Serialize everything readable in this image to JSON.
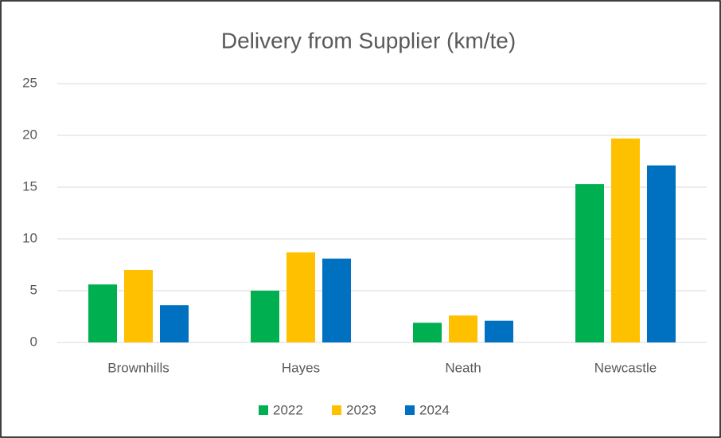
{
  "chart_data": {
    "type": "bar",
    "title": "Delivery from Supplier (km/te)",
    "categories": [
      "Brownhills",
      "Hayes",
      "Neath",
      "Newcastle"
    ],
    "series": [
      {
        "name": "2022",
        "color": "#00b050",
        "values": [
          5.6,
          5.0,
          1.9,
          15.3
        ]
      },
      {
        "name": "2023",
        "color": "#ffc000",
        "values": [
          7.0,
          8.7,
          2.6,
          19.7
        ]
      },
      {
        "name": "2024",
        "color": "#0070c0",
        "values": [
          3.6,
          8.1,
          2.1,
          17.1
        ]
      }
    ],
    "ylim": [
      0,
      25
    ],
    "yticks": [
      0,
      5,
      10,
      15,
      20,
      25
    ],
    "grid": true,
    "legend": "bottom"
  }
}
